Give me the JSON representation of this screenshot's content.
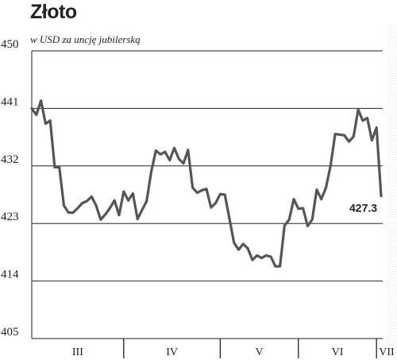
{
  "header": {
    "title": "Złoto",
    "subtitle": "w USD za uncję jubilerską"
  },
  "chart_data": {
    "type": "line",
    "title": "Złoto",
    "subtitle": "w USD za uncję jubilerską",
    "xlabel": "",
    "ylabel": "",
    "ylim": [
      405,
      450
    ],
    "y_ticks": [
      450,
      441,
      432,
      423,
      414,
      405
    ],
    "grid": true,
    "months": [
      {
        "label": "III",
        "start": 0,
        "end": 20
      },
      {
        "label": "IV",
        "start": 20,
        "end": 41
      },
      {
        "label": "V",
        "start": 41,
        "end": 58
      },
      {
        "label": "VI",
        "start": 58,
        "end": 75
      },
      {
        "label": "VII",
        "start": 75,
        "end": 76
      }
    ],
    "series": [
      {
        "name": "",
        "color": "#555555",
        "values": [
          441.0,
          440.0,
          442.2,
          438.6,
          439.1,
          431.8,
          431.8,
          425.8,
          424.7,
          424.7,
          425.4,
          426.2,
          426.5,
          427.2,
          425.8,
          423.6,
          424.4,
          425.4,
          426.6,
          424.3,
          428.0,
          426.6,
          427.7,
          423.7,
          425.1,
          426.5,
          431.1,
          434.4,
          433.8,
          434.2,
          432.9,
          434.8,
          433.1,
          432.4,
          434.5,
          428.6,
          427.8,
          428.2,
          428.4,
          425.5,
          426.2,
          427.6,
          427.5,
          423.8,
          420.0,
          418.9,
          419.8,
          419.1,
          417.3,
          418.0,
          417.6,
          418.0,
          417.8,
          416.3,
          416.3,
          422.7,
          423.6,
          426.8,
          425.3,
          425.4,
          422.6,
          423.6,
          428.3,
          426.8,
          428.6,
          432.0,
          437.0,
          436.9,
          436.8,
          435.8,
          436.6,
          440.8,
          439.1,
          439.5,
          436.0,
          438.0,
          427.3
        ]
      }
    ],
    "last_value_label": "427.3"
  }
}
